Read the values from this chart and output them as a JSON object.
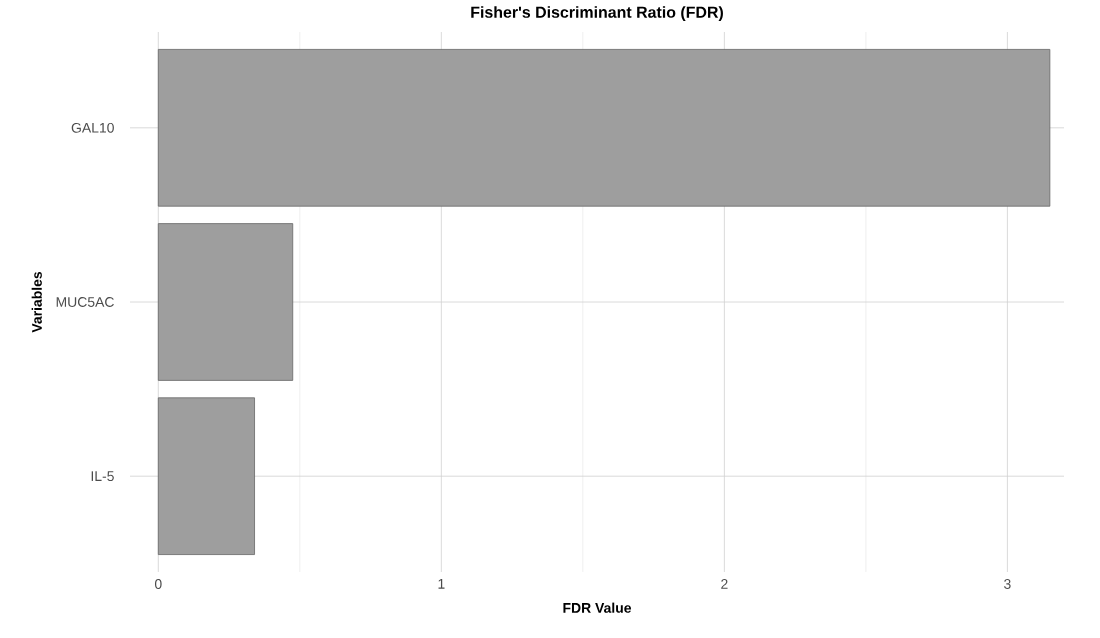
{
  "chart_data": {
    "type": "bar",
    "orientation": "horizontal",
    "title": "Fisher's Discriminant Ratio (FDR)",
    "xlabel": "FDR Value",
    "ylabel": "Variables",
    "categories": [
      "GAL10",
      "MUC5AC",
      "IL-5"
    ],
    "values": [
      3.15,
      0.475,
      0.34
    ],
    "color": "#9e9e9e",
    "xlim": [
      -0.1,
      3.2
    ],
    "xticks": [
      0,
      1,
      2,
      3
    ],
    "grid": true
  }
}
